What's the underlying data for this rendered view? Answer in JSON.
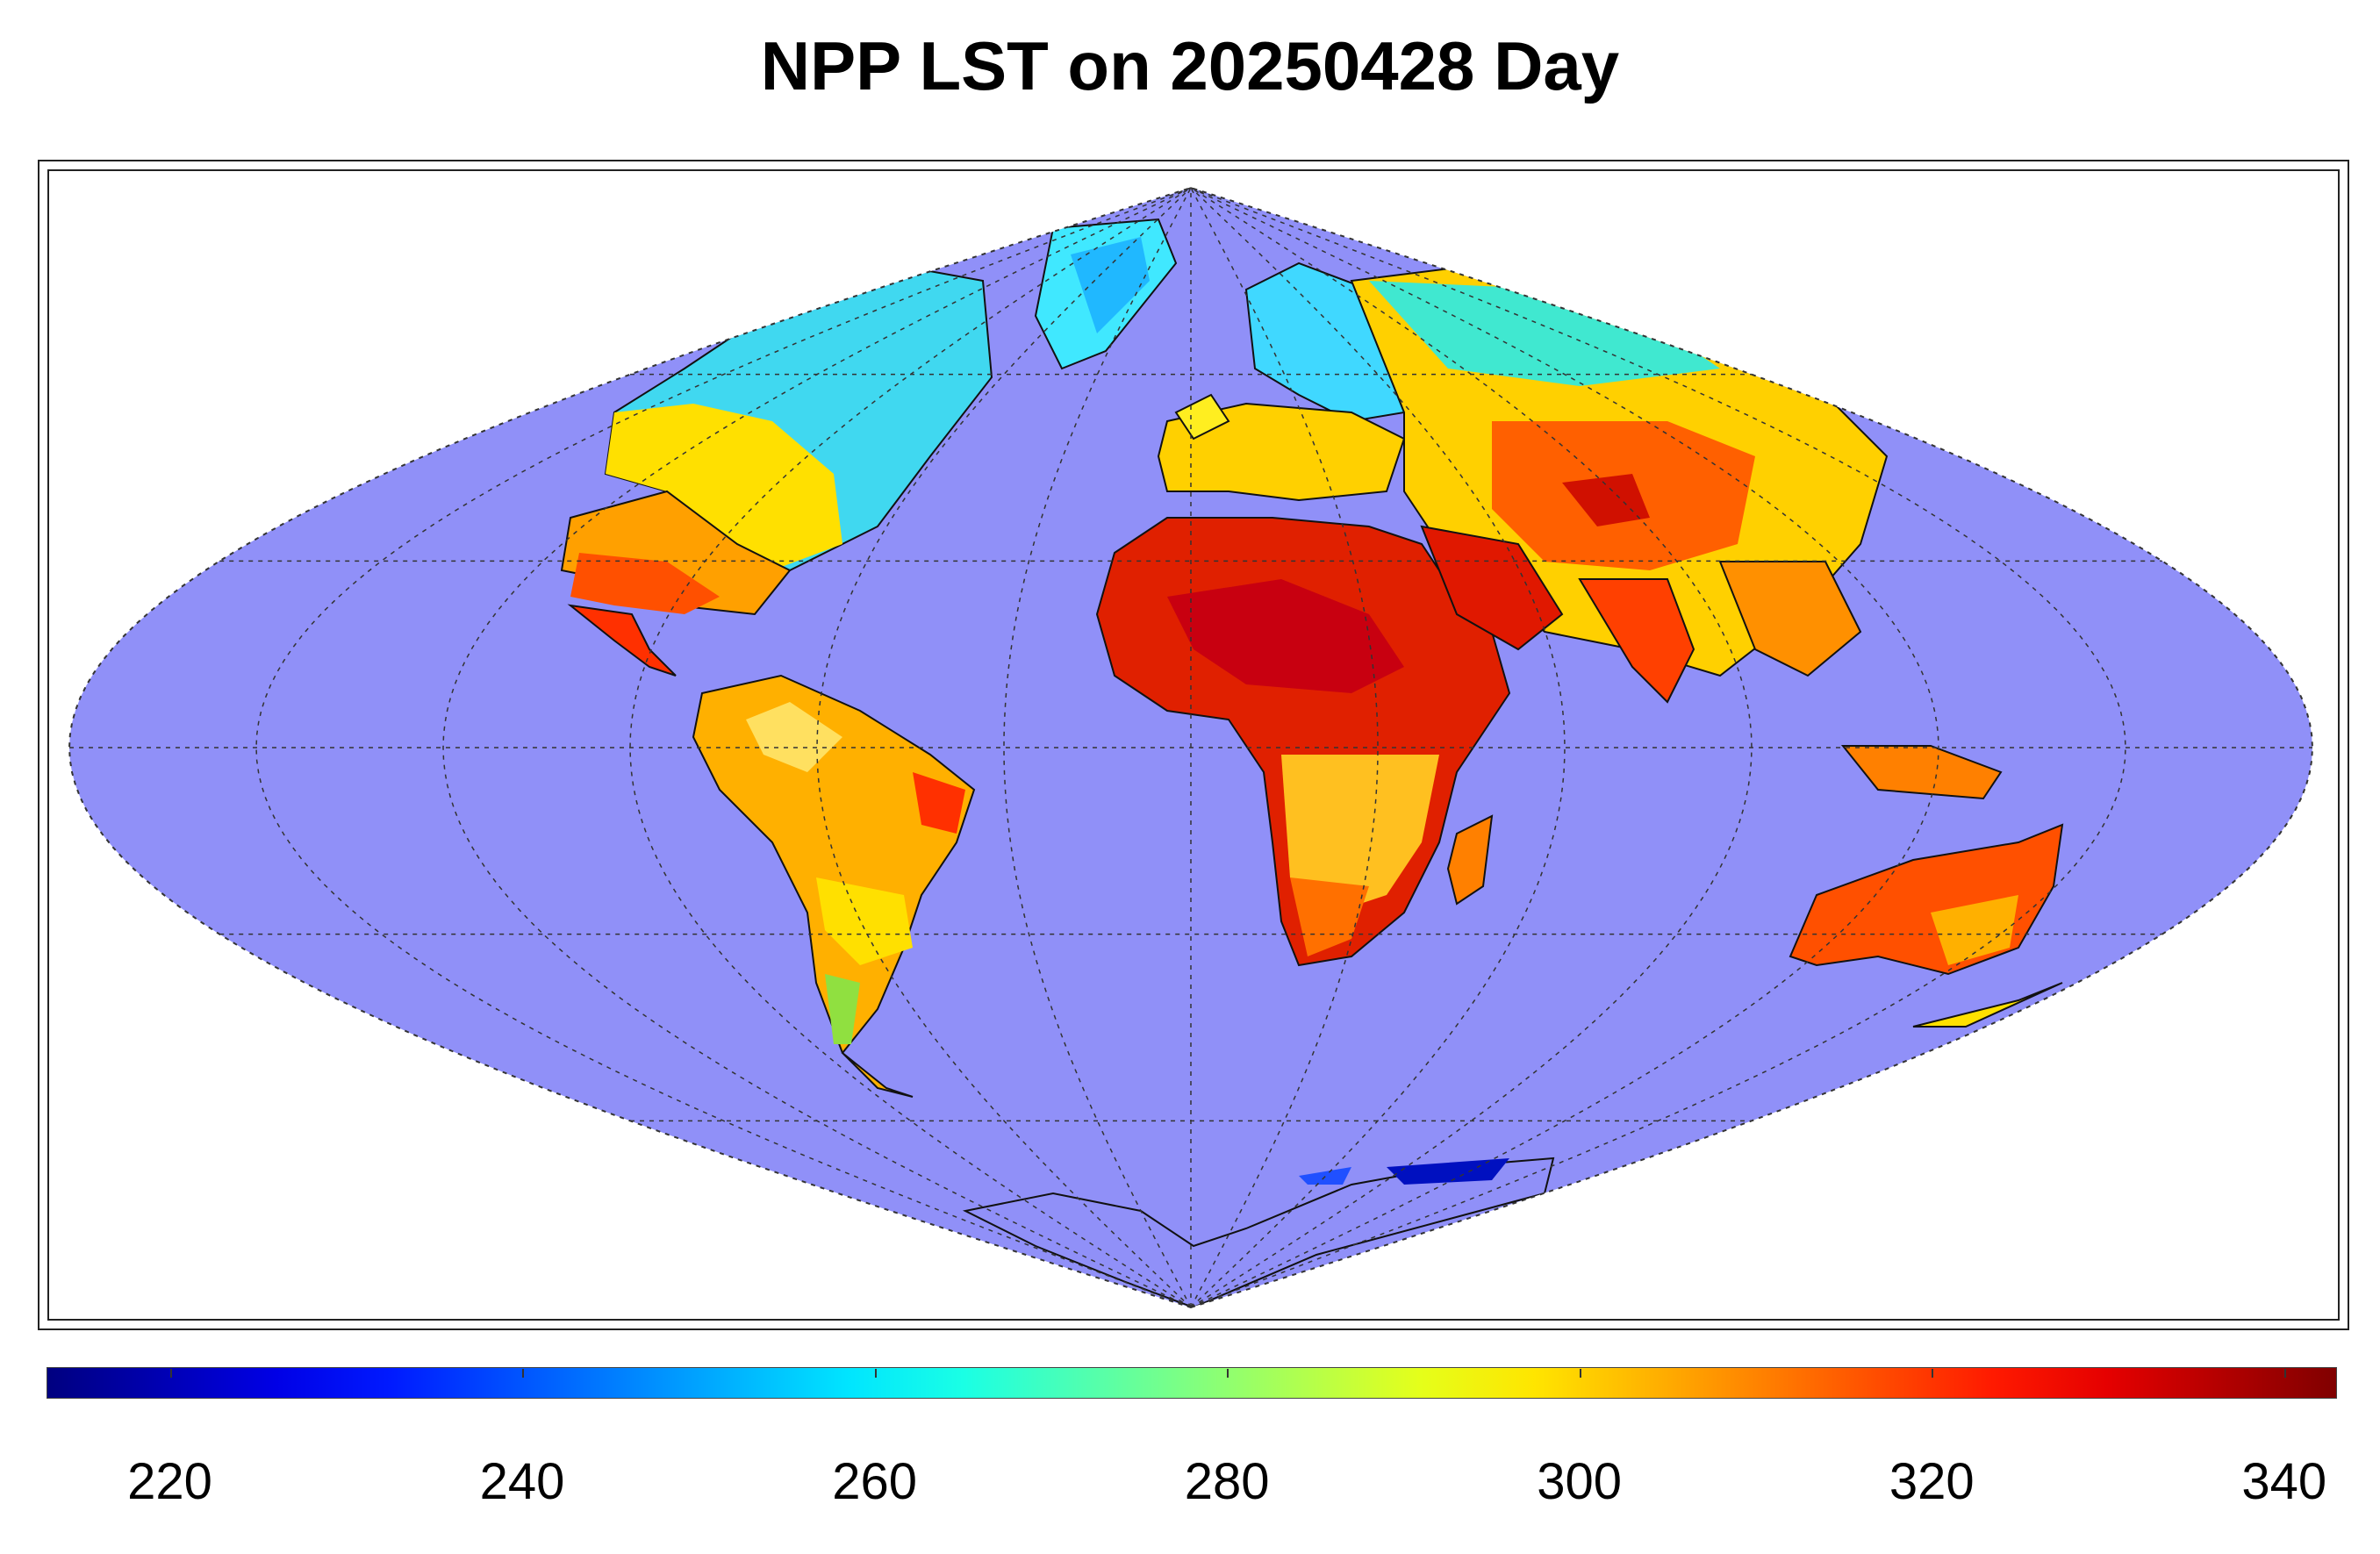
{
  "title": "NPP LST on 20250428 Day",
  "colorbar": {
    "min": 213,
    "max": 343,
    "ticks": [
      220,
      240,
      260,
      280,
      300,
      320,
      340
    ],
    "tick_labels": [
      "220",
      "240",
      "260",
      "280",
      "300",
      "320",
      "340"
    ],
    "colormap": "jet"
  },
  "colors": {
    "ocean": "#9090f8",
    "coastline": "#111111",
    "graticule": "#333333"
  },
  "map": {
    "projection": "sinusoidal",
    "graticule": true
  }
}
